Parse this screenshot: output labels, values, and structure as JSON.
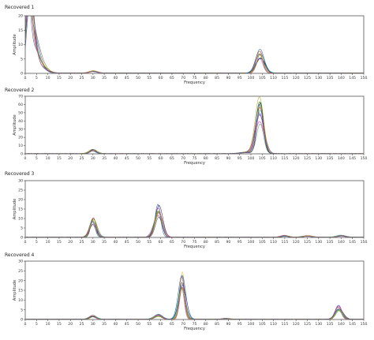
{
  "chart_data": [
    {
      "type": "line",
      "title": "Recovered 1",
      "xlabel": "Frequency",
      "ylabel": "Amplitude",
      "xlim": [
        0,
        150
      ],
      "ylim": [
        0,
        20
      ],
      "x_ticks": [
        0,
        5,
        10,
        15,
        20,
        25,
        30,
        35,
        40,
        45,
        50,
        55,
        60,
        65,
        70,
        75,
        80,
        85,
        90,
        95,
        100,
        105,
        110,
        115,
        120,
        125,
        130,
        135,
        140,
        145,
        150
      ],
      "y_ticks": [
        0,
        5,
        10,
        15,
        20
      ],
      "grid": false,
      "legend": "none",
      "peaks": [
        {
          "x": 1.5,
          "peak": 20,
          "width": 1.2,
          "spread": 0.35
        },
        {
          "x": 3,
          "peak": 14,
          "width": 2.2,
          "spread": 0.4
        },
        {
          "x": 6.5,
          "peak": 3,
          "width": 2.5,
          "spread": 0.4
        },
        {
          "x": 30,
          "peak": 0.8,
          "width": 1.6,
          "spread": 0.4
        },
        {
          "x": 104,
          "peak": 8,
          "width": 1.6,
          "spread": 0.45
        }
      ]
    },
    {
      "type": "line",
      "title": "Recovered 2",
      "xlabel": "Frequency",
      "ylabel": "Amplitude",
      "xlim": [
        0,
        150
      ],
      "ylim": [
        0,
        70
      ],
      "x_ticks": [
        0,
        5,
        10,
        15,
        20,
        25,
        30,
        35,
        40,
        45,
        50,
        55,
        60,
        65,
        70,
        75,
        80,
        85,
        90,
        95,
        100,
        105,
        110,
        115,
        120,
        125,
        130,
        135,
        140,
        145,
        150
      ],
      "y_ticks": [
        0,
        10,
        20,
        30,
        40,
        50,
        60,
        70
      ],
      "grid": false,
      "legend": "none",
      "peaks": [
        {
          "x": 30,
          "peak": 5,
          "width": 1.5,
          "spread": 0.4
        },
        {
          "x": 98,
          "peak": 2,
          "width": 2.5,
          "spread": 0.5
        },
        {
          "x": 104,
          "peak": 65,
          "width": 1.6,
          "spread": 0.45
        }
      ]
    },
    {
      "type": "line",
      "title": "Recovered 3",
      "xlabel": "Frequency",
      "ylabel": "Amplitude",
      "xlim": [
        0,
        150
      ],
      "ylim": [
        0,
        30
      ],
      "x_ticks": [
        0,
        5,
        10,
        15,
        20,
        25,
        30,
        35,
        40,
        45,
        50,
        55,
        60,
        65,
        70,
        75,
        80,
        85,
        90,
        95,
        100,
        105,
        110,
        115,
        120,
        125,
        130,
        135,
        140,
        145,
        150
      ],
      "y_ticks": [
        0,
        5,
        10,
        15,
        20,
        25,
        30
      ],
      "grid": false,
      "legend": "none",
      "peaks": [
        {
          "x": 30,
          "peak": 10,
          "width": 1.3,
          "spread": 0.35
        },
        {
          "x": 59,
          "peak": 17,
          "width": 1.5,
          "spread": 0.4
        },
        {
          "x": 115,
          "peak": 1,
          "width": 1.5,
          "spread": 0.5
        },
        {
          "x": 125,
          "peak": 0.8,
          "width": 2,
          "spread": 0.5
        },
        {
          "x": 140,
          "peak": 1.2,
          "width": 1.8,
          "spread": 0.5
        }
      ]
    },
    {
      "type": "line",
      "title": "Recovered 4",
      "xlabel": "Frequency",
      "ylabel": "Amplitude",
      "xlim": [
        0,
        150
      ],
      "ylim": [
        0,
        30
      ],
      "x_ticks": [
        0,
        5,
        10,
        15,
        20,
        25,
        30,
        35,
        40,
        45,
        50,
        55,
        60,
        65,
        70,
        75,
        80,
        85,
        90,
        95,
        100,
        105,
        110,
        115,
        120,
        125,
        130,
        135,
        140,
        145,
        150
      ],
      "y_ticks": [
        0,
        5,
        10,
        15,
        20,
        25,
        30
      ],
      "grid": false,
      "legend": "none",
      "peaks": [
        {
          "x": 30,
          "peak": 2,
          "width": 1.3,
          "spread": 0.4
        },
        {
          "x": 59,
          "peak": 2.5,
          "width": 1.5,
          "spread": 0.45
        },
        {
          "x": 69.5,
          "peak": 24,
          "width": 1.3,
          "spread": 0.35
        },
        {
          "x": 89,
          "peak": 0.5,
          "width": 1.5,
          "spread": 0.5
        },
        {
          "x": 139,
          "peak": 7,
          "width": 1.5,
          "spread": 0.4
        }
      ]
    }
  ],
  "series_colors": [
    "#1a7a1a",
    "#d01ab0",
    "#2040d0",
    "#e0c010",
    "#101010",
    "#20c0c0",
    "#8040e0",
    "#e04040",
    "#40a040",
    "#a0a000",
    "#1050a0",
    "#c06080"
  ]
}
